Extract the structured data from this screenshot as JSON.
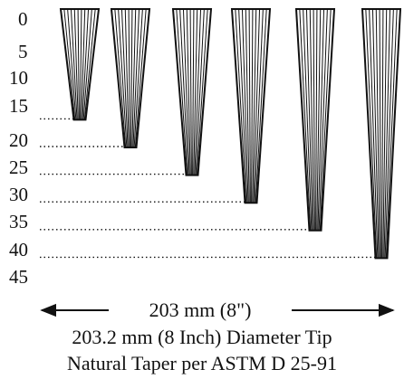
{
  "scale_labels": [
    "0",
    "5",
    "10",
    "15",
    "20",
    "25",
    "30",
    "35",
    "40",
    "45"
  ],
  "pole_lengths": [
    20,
    25,
    30,
    35,
    40,
    45
  ],
  "dimension": "203 mm (8\")",
  "caption_line1": "203.2 mm (8 Inch) Diameter Tip",
  "caption_line2": "Natural Taper per ASTM D 25-91",
  "colors": {
    "ink": "#111111",
    "background": "#ffffff"
  }
}
